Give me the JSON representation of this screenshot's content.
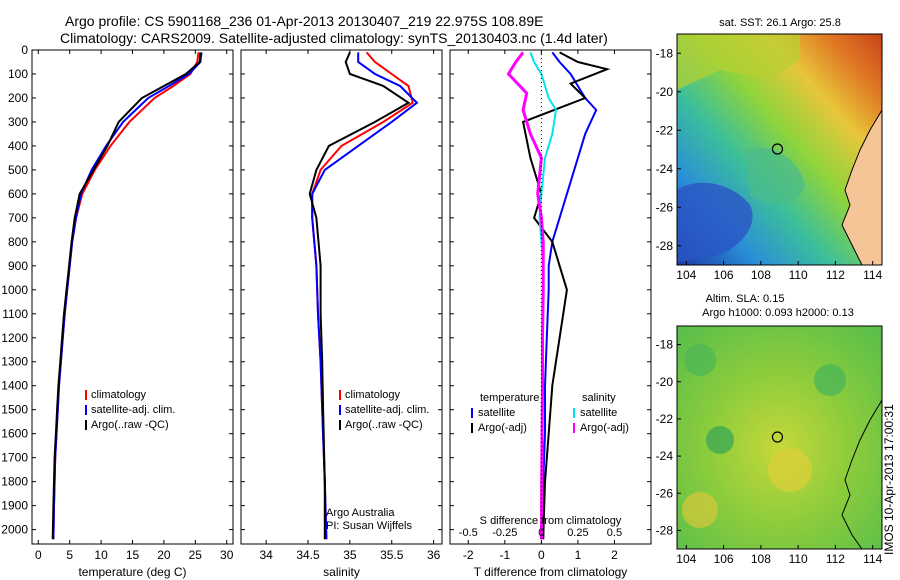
{
  "header": {
    "line1": "Argo profile: CS 5901168_236 01-Apr-2013 20130407_219 22.975S 108.89E",
    "line2": "Climatology: CARS2009. Satellite-adjusted climatology: synTS_20130403.nc (1.4d later)"
  },
  "side_text": "IMOS 10-Apr-2013 17:00:31",
  "colors": {
    "climatology": "#ff0000",
    "satellite": "#0000ff",
    "argo": "#000000",
    "salinity_satellite": "#00e5ee",
    "salinity_argo": "#ff00ff"
  },
  "chart_data": [
    {
      "type": "line",
      "panel": "temperature",
      "xlabel": "temperature (deg C)",
      "ylabel": "",
      "xlim": [
        -1,
        31
      ],
      "ylim": [
        2060,
        0
      ],
      "xticks": [
        "0",
        "5",
        "10",
        "15",
        "20",
        "25",
        "30"
      ],
      "yticks": [
        "0",
        "100",
        "200",
        "300",
        "400",
        "500",
        "600",
        "700",
        "800",
        "900",
        "1000",
        "1100",
        "1200",
        "1300",
        "1400",
        "1500",
        "1600",
        "1700",
        "1800",
        "1900",
        "2000"
      ],
      "legend": [
        "climatology",
        "satellite-adj. clim.",
        "Argo(..raw -QC)"
      ],
      "series": [
        {
          "name": "climatology",
          "x": [
            25.5,
            25.3,
            24.2,
            21.5,
            18.5,
            14.5,
            11.5,
            9.0,
            7.0,
            6.0,
            5.4,
            5.0,
            4.6,
            4.2,
            3.9,
            3.6,
            3.3,
            3.1,
            2.9,
            2.7,
            2.5,
            2.4
          ],
          "y": [
            10,
            50,
            100,
            150,
            200,
            300,
            400,
            500,
            600,
            700,
            800,
            900,
            1000,
            1100,
            1200,
            1300,
            1400,
            1500,
            1600,
            1700,
            1900,
            2040
          ]
        },
        {
          "name": "satellite-adj. clim.",
          "x": [
            26.0,
            25.8,
            24.0,
            20.8,
            17.5,
            13.5,
            10.8,
            8.5,
            6.8,
            6.0,
            5.4,
            5.0,
            4.6,
            4.2,
            3.9,
            3.6,
            3.3,
            3.1,
            2.9,
            2.7,
            2.5,
            2.4
          ],
          "y": [
            10,
            50,
            100,
            150,
            200,
            300,
            400,
            500,
            600,
            700,
            800,
            900,
            1000,
            1100,
            1200,
            1300,
            1400,
            1500,
            1600,
            1700,
            1900,
            2040
          ]
        },
        {
          "name": "Argo(..raw -QC)",
          "x": [
            25.8,
            25.7,
            23.5,
            20.0,
            16.5,
            12.8,
            11.0,
            8.8,
            6.6,
            5.8,
            5.3,
            4.9,
            4.5,
            4.1,
            3.8,
            3.5,
            3.2,
            3.0,
            2.8,
            2.6,
            2.4,
            2.3
          ],
          "y": [
            10,
            50,
            100,
            150,
            200,
            300,
            400,
            500,
            600,
            700,
            800,
            900,
            1000,
            1100,
            1200,
            1300,
            1400,
            1500,
            1600,
            1700,
            1900,
            2040
          ]
        }
      ]
    },
    {
      "type": "line",
      "panel": "salinity",
      "xlabel": "salinity",
      "ylabel": "",
      "xlim": [
        33.7,
        36.1
      ],
      "ylim": [
        2060,
        0
      ],
      "xticks": [
        "34",
        "34.5",
        "35",
        "35.5",
        "36"
      ],
      "legend": [
        "climatology",
        "satellite-adj. clim.",
        "Argo(..raw -QC)"
      ],
      "annotation": [
        "Argo Australia",
        "PI: Susan Wijffels"
      ],
      "series": [
        {
          "name": "climatology",
          "x": [
            35.2,
            35.3,
            35.5,
            35.7,
            35.75,
            35.4,
            34.9,
            34.65,
            34.55,
            34.55,
            34.6,
            34.62,
            34.65,
            34.67,
            34.7,
            34.72
          ],
          "y": [
            10,
            50,
            100,
            150,
            220,
            300,
            400,
            500,
            600,
            700,
            900,
            1100,
            1300,
            1500,
            1800,
            2040
          ]
        },
        {
          "name": "satellite-adj. clim.",
          "x": [
            35.1,
            35.1,
            35.3,
            35.6,
            35.8,
            35.5,
            35.1,
            34.7,
            34.55,
            34.55,
            34.6,
            34.62,
            34.65,
            34.67,
            34.7,
            34.72
          ],
          "y": [
            10,
            50,
            100,
            150,
            220,
            300,
            400,
            500,
            600,
            700,
            900,
            1100,
            1300,
            1500,
            1800,
            2040
          ]
        },
        {
          "name": "Argo(..raw -QC)",
          "x": [
            35.0,
            34.95,
            35.0,
            35.4,
            35.7,
            35.3,
            34.75,
            34.6,
            34.52,
            34.6,
            34.65,
            34.65,
            34.67,
            34.68,
            34.7,
            34.7
          ],
          "y": [
            10,
            50,
            100,
            150,
            220,
            300,
            400,
            500,
            600,
            700,
            900,
            1100,
            1300,
            1500,
            1800,
            2040
          ]
        }
      ]
    },
    {
      "type": "line",
      "panel": "difference",
      "xlabel": "T difference from climatology",
      "xlabel_top": "S difference from climatology",
      "xlim": [
        -2.5,
        3.0
      ],
      "ylim": [
        2060,
        0
      ],
      "xticks": [
        "-2",
        "-1",
        "0",
        "1",
        "2"
      ],
      "xticks_salinity": [
        "-0.5",
        "-0.25",
        "0",
        "0.25",
        "0.5"
      ],
      "legend_titles": [
        "temperature",
        "salinity"
      ],
      "legend": [
        "satellite",
        "Argo(-adj)",
        "satellite",
        "Argo(-adj)"
      ],
      "series": [
        {
          "name": "temperature satellite",
          "x": [
            0.3,
            0.5,
            0.8,
            1.2,
            1.5,
            1.2,
            1.0,
            0.7,
            0.5,
            0.3,
            0.2,
            0.2,
            0.15,
            0.1,
            0.1,
            0.05,
            0.05
          ],
          "y": [
            10,
            50,
            100,
            200,
            250,
            350,
            450,
            600,
            700,
            800,
            900,
            1000,
            1200,
            1400,
            1600,
            1800,
            2040
          ]
        },
        {
          "name": "temperature Argo(-adj)",
          "x": [
            0.5,
            1.0,
            1.8,
            0.8,
            1.2,
            -0.5,
            -0.3,
            0.0,
            -0.2,
            0.3,
            0.5,
            0.7,
            0.5,
            0.3,
            0.2,
            0.1,
            0.05
          ],
          "y": [
            10,
            50,
            80,
            140,
            200,
            300,
            450,
            600,
            700,
            800,
            900,
            1000,
            1200,
            1400,
            1600,
            1800,
            2040
          ]
        },
        {
          "name": "salinity satellite",
          "x": [
            -0.3,
            -0.2,
            0.0,
            0.2,
            0.4,
            0.3,
            0.1,
            0.0,
            -0.05,
            0.0,
            0.05,
            0.05,
            0.03,
            0.02,
            0.01,
            0.0,
            0.0
          ],
          "y": [
            10,
            50,
            100,
            200,
            250,
            350,
            450,
            600,
            700,
            800,
            900,
            1000,
            1200,
            1400,
            1600,
            1800,
            2040
          ]
        },
        {
          "name": "salinity Argo(-adj)",
          "x": [
            -0.5,
            -0.7,
            -0.9,
            -0.4,
            -0.5,
            -0.3,
            0.0,
            -0.1,
            0.0,
            0.05,
            0.05,
            0.05,
            0.03,
            0.03,
            0.02,
            0.01,
            0.0
          ],
          "y": [
            10,
            50,
            100,
            180,
            250,
            350,
            450,
            600,
            700,
            800,
            900,
            1000,
            1200,
            1400,
            1600,
            1800,
            2040
          ]
        }
      ]
    },
    {
      "type": "heatmap",
      "panel": "sst_map",
      "title": "sat. SST: 26.1  Argo: 25.8",
      "xlim": [
        103.5,
        114.5
      ],
      "ylim": [
        -29,
        -17
      ],
      "xticks": [
        "104",
        "106",
        "108",
        "110",
        "112",
        "114"
      ],
      "yticks": [
        "-18",
        "-20",
        "-22",
        "-24",
        "-26",
        "-28"
      ],
      "float_position": [
        108.89,
        -22.975
      ]
    },
    {
      "type": "heatmap",
      "panel": "sla_map",
      "title_line1": "Altim. SLA: 0.15",
      "title_line2": "Argo h1000: 0.093 h2000: 0.13",
      "xlim": [
        103.5,
        114.5
      ],
      "ylim": [
        -29,
        -17
      ],
      "xticks": [
        "104",
        "106",
        "108",
        "110",
        "112",
        "114"
      ],
      "yticks": [
        "-18",
        "-20",
        "-22",
        "-24",
        "-26",
        "-28"
      ],
      "float_position": [
        108.89,
        -22.975
      ]
    }
  ]
}
